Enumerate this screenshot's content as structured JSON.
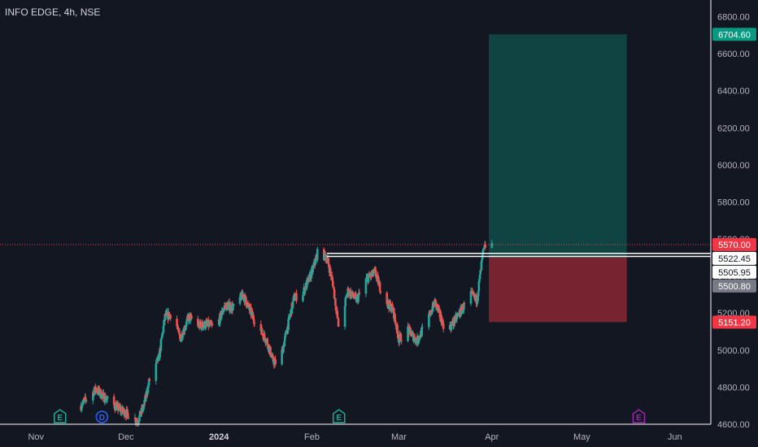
{
  "chart_data": {
    "type": "candlestick",
    "title": "INFO EDGE, 4h, NSE",
    "ylim": [
      4600,
      6890
    ],
    "y_ticks": [
      {
        "value": 4600,
        "label": "4600.00"
      },
      {
        "value": 4800,
        "label": "4800.00"
      },
      {
        "value": 5000,
        "label": "5000.00"
      },
      {
        "value": 5200,
        "label": "5200.00"
      },
      {
        "value": 5400,
        "label": "5400.00"
      },
      {
        "value": 5600,
        "label": "5600.00"
      },
      {
        "value": 5800,
        "label": "5800.00"
      },
      {
        "value": 6000,
        "label": "6000.00"
      },
      {
        "value": 6200,
        "label": "6200.00"
      },
      {
        "value": 6400,
        "label": "6400.00"
      },
      {
        "value": 6600,
        "label": "6600.00"
      },
      {
        "value": 6800,
        "label": "6800.00"
      }
    ],
    "x_range": [
      "2023-10-20",
      "2024-06-13"
    ],
    "x_ticks": [
      {
        "date": "2023-11-01",
        "label": "Nov",
        "bold": false
      },
      {
        "date": "2023-12-01",
        "label": "Dec",
        "bold": false
      },
      {
        "date": "2024-01-01",
        "label": "2024",
        "bold": true
      },
      {
        "date": "2024-02-01",
        "label": "Feb",
        "bold": false
      },
      {
        "date": "2024-03-01",
        "label": "Mar",
        "bold": false
      },
      {
        "date": "2024-04-01",
        "label": "Apr",
        "bold": false
      },
      {
        "date": "2024-05-01",
        "label": "May",
        "bold": false
      },
      {
        "date": "2024-06-01",
        "label": "Jun",
        "bold": false
      }
    ],
    "anchors": [
      [
        "2023-11-16",
        4700
      ],
      [
        "2023-11-19",
        4760
      ],
      [
        "2023-11-21",
        4790
      ],
      [
        "2023-11-24",
        4740
      ],
      [
        "2023-11-28",
        4690
      ],
      [
        "2023-12-02",
        4650
      ],
      [
        "2023-12-05",
        4620
      ],
      [
        "2023-12-07",
        4700
      ],
      [
        "2023-12-09",
        4850
      ],
      [
        "2023-12-12",
        4960
      ],
      [
        "2023-12-14",
        5180
      ],
      [
        "2023-12-17",
        5200
      ],
      [
        "2023-12-19",
        5060
      ],
      [
        "2023-12-22",
        5180
      ],
      [
        "2023-12-25",
        5130
      ],
      [
        "2023-12-28",
        5140
      ],
      [
        "2023-12-31",
        5120
      ],
      [
        "2024-01-03",
        5240
      ],
      [
        "2024-01-06",
        5230
      ],
      [
        "2024-01-09",
        5300
      ],
      [
        "2024-01-12",
        5190
      ],
      [
        "2024-01-15",
        5100
      ],
      [
        "2024-01-17",
        5050
      ],
      [
        "2024-01-19",
        4940
      ],
      [
        "2024-01-21",
        4920
      ],
      [
        "2024-01-23",
        5060
      ],
      [
        "2024-01-26",
        5280
      ],
      [
        "2024-01-29",
        5310
      ],
      [
        "2024-02-01",
        5420
      ],
      [
        "2024-02-03",
        5530
      ],
      [
        "2024-02-06",
        5500
      ],
      [
        "2024-02-08",
        5360
      ],
      [
        "2024-02-10",
        5110
      ],
      [
        "2024-02-13",
        5320
      ],
      [
        "2024-02-16",
        5270
      ],
      [
        "2024-02-19",
        5380
      ],
      [
        "2024-02-22",
        5420
      ],
      [
        "2024-02-25",
        5280
      ],
      [
        "2024-02-28",
        5220
      ],
      [
        "2024-03-01",
        5060
      ],
      [
        "2024-03-04",
        5110
      ],
      [
        "2024-03-07",
        5050
      ],
      [
        "2024-03-10",
        5140
      ],
      [
        "2024-03-13",
        5260
      ],
      [
        "2024-03-16",
        5130
      ],
      [
        "2024-03-18",
        5120
      ],
      [
        "2024-03-20",
        5170
      ],
      [
        "2024-03-22",
        5220
      ],
      [
        "2024-03-25",
        5300
      ],
      [
        "2024-03-27",
        5270
      ],
      [
        "2024-03-29",
        5520
      ],
      [
        "2024-03-31",
        5620
      ],
      [
        "2024-04-01",
        5570
      ]
    ],
    "current_price": {
      "value": 5570.0,
      "label": "5570.00"
    },
    "horizontal_levels": [
      {
        "value": 5522.45,
        "label": "5522.45",
        "from": "2024-02-06"
      },
      {
        "value": 5505.95,
        "label": "5505.95",
        "from": "2024-02-06"
      }
    ],
    "position": {
      "from": "2024-03-31",
      "to": "2024-05-16",
      "entry": {
        "value": 5500.8,
        "label": "5500.80"
      },
      "target": {
        "value": 6704.6,
        "label": "6704.60"
      },
      "stop": {
        "value": 5151.2,
        "label": "5151.20"
      }
    },
    "events": [
      {
        "date": "2023-11-09",
        "letter": "E",
        "color": "#22ab94"
      },
      {
        "date": "2023-11-23",
        "letter": "D",
        "color": "#2962ff"
      },
      {
        "date": "2024-02-10",
        "letter": "E",
        "color": "#22ab94"
      },
      {
        "date": "2024-05-20",
        "letter": "E",
        "color": "#9c27b0"
      }
    ]
  },
  "colors": {
    "background": "#131722",
    "up": "#26a69a",
    "down": "#ef5350",
    "axis_text": "#b2b5be",
    "price_tag": "#f23645",
    "target_tag": "#089981",
    "entry_tag": "#787b86",
    "target_zone": "rgba(8,153,129,0.35)",
    "stop_zone": "rgba(242,54,69,0.45)"
  }
}
